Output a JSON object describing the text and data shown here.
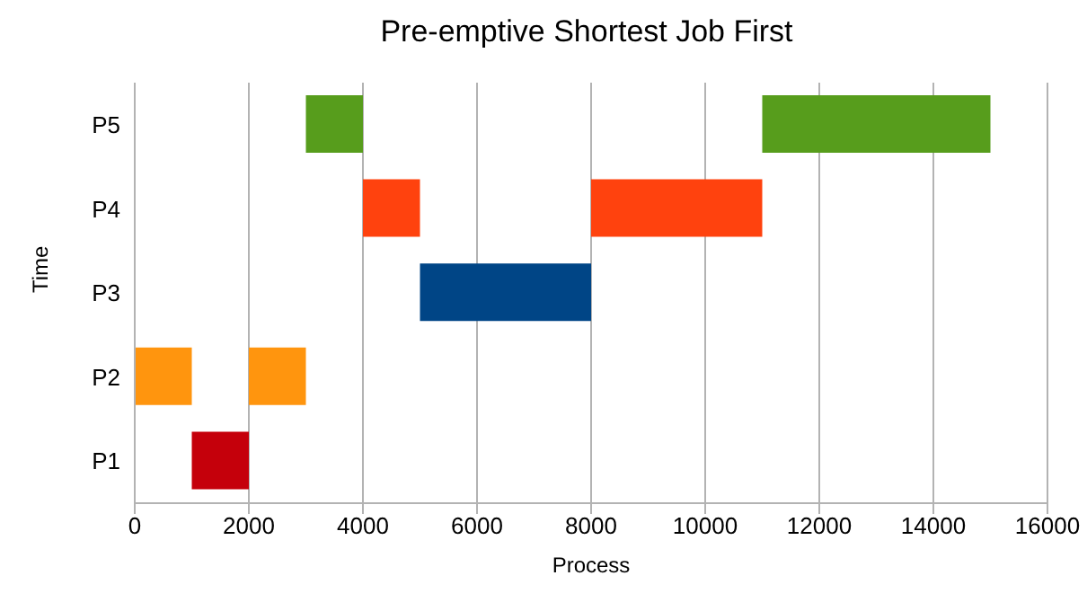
{
  "chart_data": {
    "type": "bar",
    "orientation": "horizontal",
    "title": "Pre-emptive Shortest Job First",
    "xlabel": "Process",
    "ylabel": "Time",
    "categories": [
      "P5",
      "P4",
      "P3",
      "P2",
      "P1"
    ],
    "series": [
      {
        "colors": [
          "#579d1c",
          "#ff420e",
          "#004586",
          "#ff950e",
          "#c5000b"
        ],
        "base": [
          3000,
          4000,
          5000,
          0,
          1000
        ],
        "values": [
          1000,
          1000,
          3000,
          1000,
          1000
        ]
      },
      {
        "colors": [
          "#579d1c",
          "#ff420e",
          "#004586",
          "#ff950e",
          "#c5000b"
        ],
        "base": [
          11000,
          8000,
          null,
          2000,
          null
        ],
        "values": [
          4000,
          3000,
          null,
          1000,
          null
        ]
      }
    ],
    "xlim": [
      0,
      16000
    ],
    "xticks": [
      0,
      2000,
      4000,
      6000,
      8000,
      10000,
      12000,
      14000,
      16000
    ],
    "grid": "x",
    "legend": false
  }
}
